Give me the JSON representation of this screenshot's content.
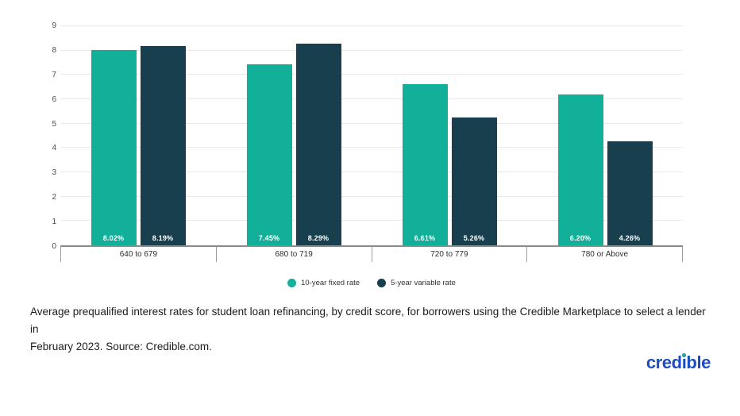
{
  "chart_data": {
    "type": "bar",
    "categories": [
      "640 to 679",
      "680 to 719",
      "720 to 779",
      "780 or Above"
    ],
    "series": [
      {
        "name": "10-year fixed rate",
        "color": "#12b099",
        "values": [
          8.02,
          7.45,
          6.61,
          6.2
        ],
        "value_labels": [
          "8.02%",
          "7.45%",
          "6.61%",
          "6.20%"
        ]
      },
      {
        "name": "5-year variable rate",
        "color": "#173f4e",
        "values": [
          8.19,
          8.29,
          5.26,
          4.26
        ],
        "value_labels": [
          "8.19%",
          "8.29%",
          "5.26%",
          "4.26%"
        ]
      }
    ],
    "ylim": [
      0,
      9
    ],
    "yticks": [
      0,
      1,
      2,
      3,
      4,
      5,
      6,
      7,
      8,
      9
    ],
    "grid": "horizontal",
    "legend_position": "bottom"
  },
  "caption": {
    "line1": "Average prequalified interest rates for student loan refinancing, by credit score, for borrowers using the Credible Marketplace to select a lender in",
    "line2": "February 2023. Source: Credible.com."
  },
  "logo": {
    "text": "credible",
    "color": "#1d4dc3",
    "dot_color": "#12b099"
  },
  "colors": {
    "background": "#ffffff",
    "gridline": "#e9e9e9",
    "axis_line": "#8b8b8b",
    "tick": "#9b9b9b",
    "axis_text": "#4d4d4d",
    "bar_label_text": "#ffffff"
  }
}
